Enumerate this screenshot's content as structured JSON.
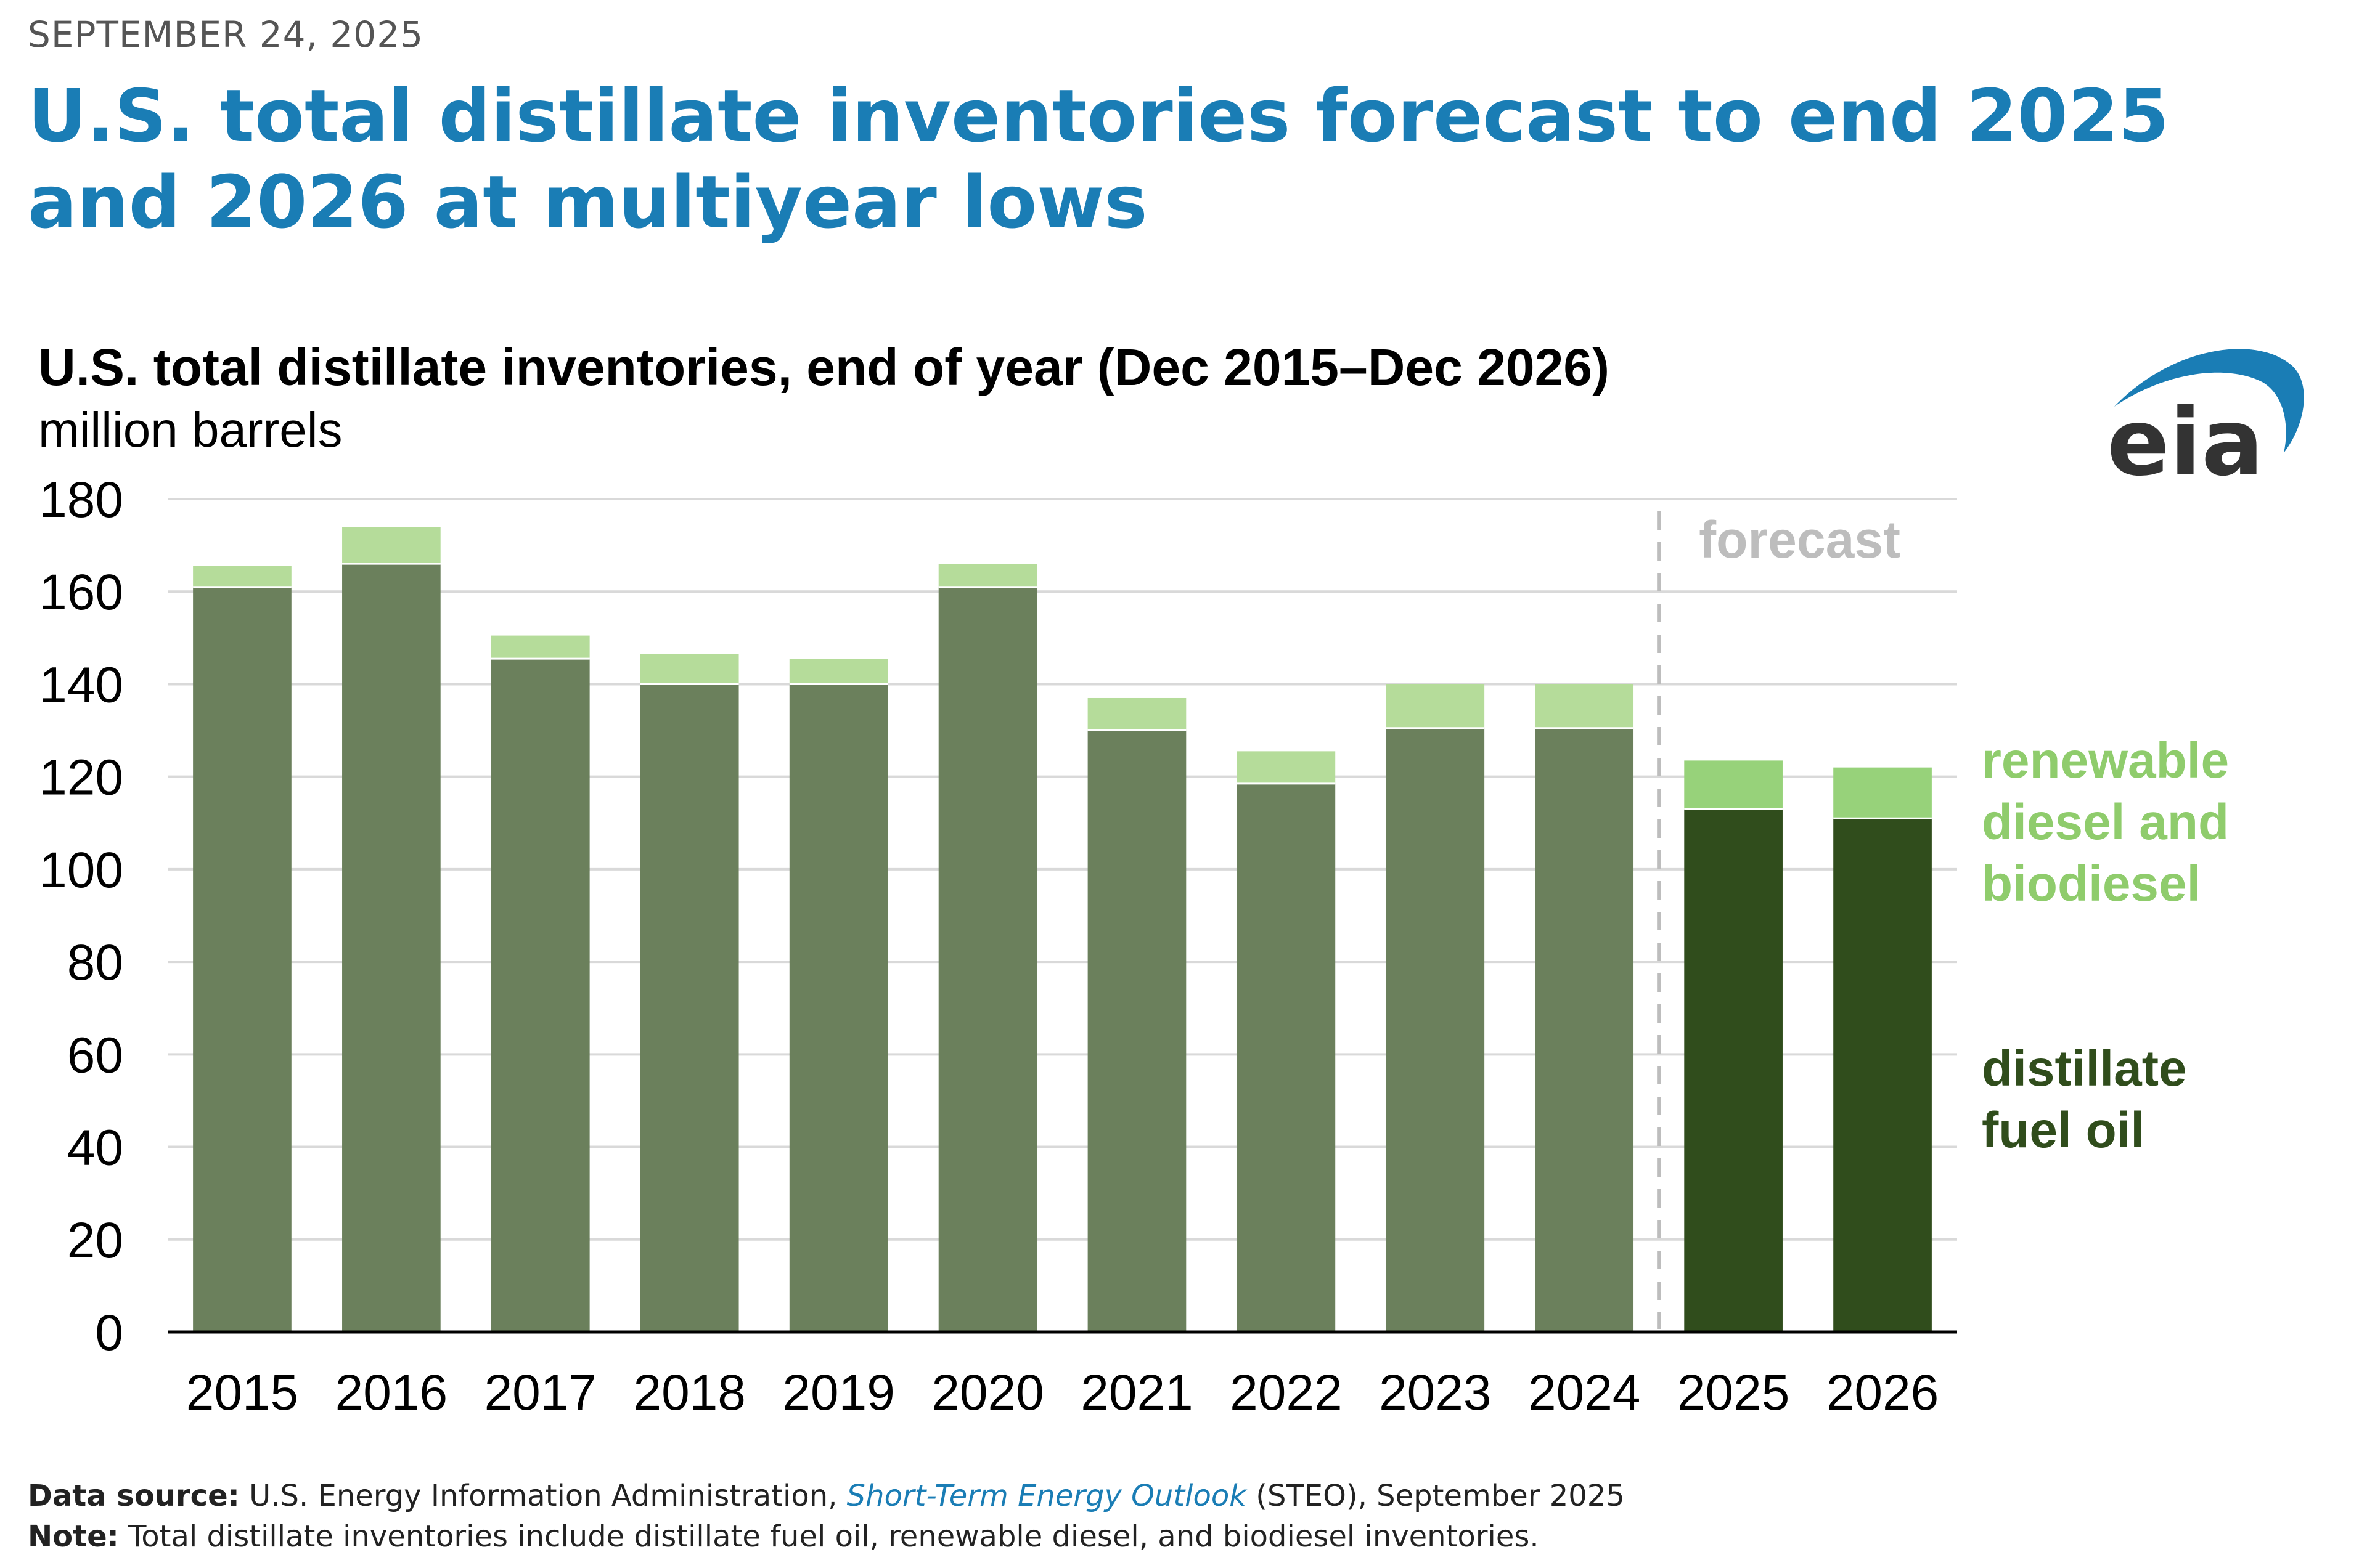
{
  "header": {
    "date": "SEPTEMBER 24, 2025",
    "headline": "U.S. total distillate inventories forecast to end 2025 and 2026 at multiyear lows"
  },
  "logo": {
    "text": "eia"
  },
  "colors": {
    "headline": "#1a7db5",
    "historical_bar": "#6b805c",
    "historical_renewable": "#b5dc9a",
    "forecast_distillate": "#304d1c",
    "forecast_renewable": "#97d27a",
    "legend_renewable": "#8fcc6c",
    "legend_distillate": "#304d1c",
    "forecast_label": "#bdbdbd",
    "grid": "#d9d9d9"
  },
  "chart_data": {
    "type": "bar",
    "stacked": true,
    "title": "U.S. total distillate inventories, end of year (Dec 2015–Dec 2026)",
    "ylabel": "million barrels",
    "xlabel": "",
    "ylim": [
      0,
      180
    ],
    "yticks": [
      0,
      20,
      40,
      60,
      80,
      100,
      120,
      140,
      160,
      180
    ],
    "categories": [
      "2015",
      "2016",
      "2017",
      "2018",
      "2019",
      "2020",
      "2021",
      "2022",
      "2023",
      "2024",
      "2025",
      "2026"
    ],
    "forecast_start_index": 10,
    "forecast_label": "forecast",
    "series": [
      {
        "name": "distillate fuel oil",
        "legend": [
          "distillate",
          "fuel oil"
        ],
        "values": [
          161,
          166,
          145.5,
          140,
          140,
          161,
          130,
          118.5,
          130.5,
          130.5,
          113,
          111
        ]
      },
      {
        "name": "renewable diesel and biodiesel",
        "legend": [
          "renewable",
          "diesel and",
          "biodiesel"
        ],
        "values": [
          4.5,
          8,
          5,
          6.5,
          5.5,
          5,
          7,
          7,
          9.5,
          9.5,
          10.5,
          11
        ]
      }
    ]
  },
  "footer": {
    "source_label": "Data source:",
    "source_text_1": " U.S. Energy Information Administration, ",
    "source_link": "Short-Term Energy Outlook",
    "source_text_2": " (STEO), September 2025",
    "note_label": "Note:",
    "note_text": " Total distillate inventories include distillate fuel oil, renewable diesel, and biodiesel inventories."
  }
}
